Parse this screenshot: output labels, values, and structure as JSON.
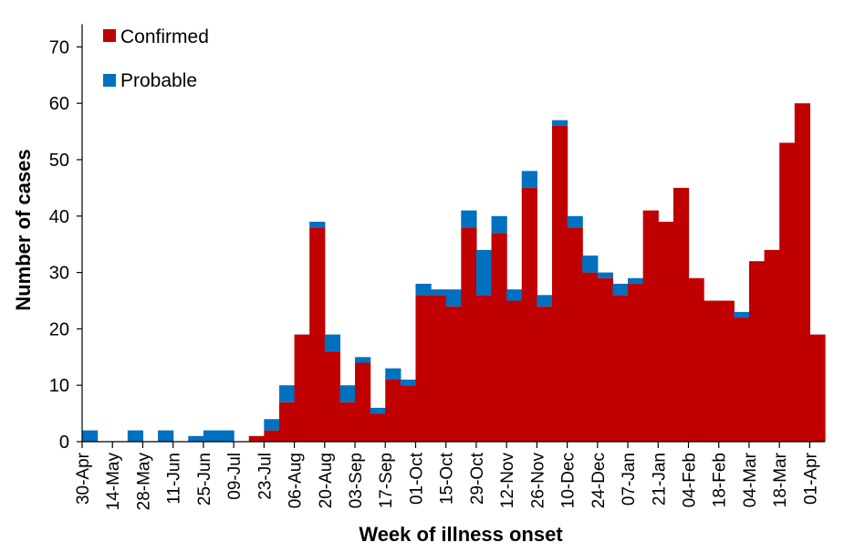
{
  "chart_data": {
    "type": "bar",
    "stacked": true,
    "title": "",
    "xlabel": "Week of illness onset",
    "ylabel": "Number of cases",
    "ylim": [
      0,
      75
    ],
    "yticks": [
      0,
      10,
      20,
      30,
      40,
      50,
      60,
      70
    ],
    "xtick_labels": [
      "30-Apr",
      "14-May",
      "28-May",
      "11-Jun",
      "25-Jun",
      "09-Jul",
      "23-Jul",
      "06-Aug",
      "20-Aug",
      "03-Sep",
      "17-Sep",
      "01-Oct",
      "15-Oct",
      "29-Oct",
      "12-Nov",
      "26-Nov",
      "10-Dec",
      "24-Dec",
      "07-Jan",
      "21-Jan",
      "04-Feb",
      "18-Feb",
      "04-Mar",
      "18-Mar",
      "01-Apr"
    ],
    "legend": {
      "position": "top-left"
    },
    "series": [
      {
        "name": "Confirmed",
        "color": "#C00000",
        "values": [
          0,
          0,
          0,
          0,
          0,
          0,
          0,
          0,
          0,
          0,
          0,
          1,
          2,
          7,
          19,
          38,
          16,
          7,
          14,
          5,
          11,
          10,
          26,
          26,
          24,
          38,
          26,
          37,
          25,
          45,
          24,
          56,
          38,
          30,
          29,
          26,
          28,
          41,
          39,
          45,
          29,
          25,
          25,
          22,
          32,
          34,
          53,
          60,
          19
        ]
      },
      {
        "name": "Probable",
        "color": "#0070C0",
        "values": [
          2,
          0,
          0,
          2,
          0,
          2,
          0,
          1,
          2,
          2,
          0,
          0,
          2,
          3,
          0,
          1,
          3,
          3,
          1,
          1,
          2,
          1,
          2,
          1,
          3,
          3,
          8,
          3,
          2,
          3,
          2,
          1,
          2,
          3,
          1,
          2,
          1,
          0,
          0,
          0,
          0,
          0,
          0,
          1,
          0,
          0,
          0,
          0,
          0
        ]
      }
    ]
  }
}
